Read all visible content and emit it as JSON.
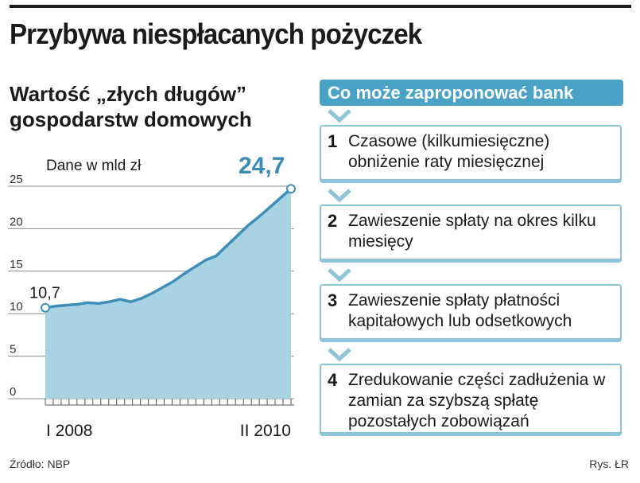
{
  "header": {
    "title": "Przybywa niespłacanych pożyczek",
    "subtitle": "Wartość „złych długów” gospodarstw domowych"
  },
  "chart_data": {
    "type": "area",
    "unit_note": "Dane w mld zł",
    "x_tick_labels": [
      "I 2008",
      "II 2010"
    ],
    "y_ticks": [
      0,
      5,
      10,
      15,
      20,
      25
    ],
    "ylim": [
      0,
      25
    ],
    "values": [
      10.7,
      10.9,
      11.0,
      11.1,
      11.3,
      11.2,
      11.4,
      11.7,
      11.4,
      11.8,
      12.4,
      13.1,
      13.8,
      14.7,
      15.5,
      16.3,
      16.8,
      18.0,
      19.2,
      20.4,
      21.4,
      22.5,
      23.6,
      24.7
    ],
    "start_label": "10,7",
    "end_label": "24,7",
    "grid": true,
    "colors": {
      "fill": "#a8d3e3",
      "line": "#3d8fb8",
      "end_label": "#3b8cb5"
    }
  },
  "panel": {
    "title": "Co może zaproponować bank",
    "steps": [
      {
        "num": "1",
        "text": "Czasowe (kilkumiesięczne) obniżenie raty miesięcznej"
      },
      {
        "num": "2",
        "text": "Zawieszenie spłaty na okres kilku miesięcy"
      },
      {
        "num": "3",
        "text": "Zawieszenie spłaty płatności kapitałowych lub odsetkowych"
      },
      {
        "num": "4",
        "text": "Zredukowanie części zadłużenia w zamian za szybszą spłatę pozostałych zobowiązań"
      }
    ]
  },
  "footer": {
    "source": "Źródło: NBP",
    "credit": "Rys. ŁR"
  }
}
